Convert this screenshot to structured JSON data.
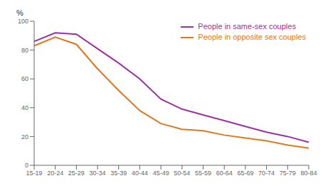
{
  "chart_data": {
    "type": "line",
    "ylabel": "%",
    "categories": [
      "15-19",
      "20-24",
      "25-29",
      "30-34",
      "35-39",
      "40-44",
      "45-49",
      "50-54",
      "55-59",
      "60-64",
      "65-69",
      "70-74",
      "75-79",
      "80-84"
    ],
    "series": [
      {
        "name": "People in same-sex couples",
        "color": "#9B30A0",
        "values": [
          86,
          92,
          91,
          81,
          71,
          60,
          46,
          39,
          35,
          31,
          27,
          23,
          20,
          16
        ]
      },
      {
        "name": "People in opposite sex couples",
        "color": "#E07820",
        "values": [
          83,
          89,
          84,
          67,
          52,
          38,
          29,
          25,
          24,
          21,
          19,
          17,
          14,
          12
        ]
      }
    ],
    "ylim": [
      0,
      100
    ],
    "yticks": [
      0,
      20,
      40,
      60,
      80,
      100
    ],
    "grid": false,
    "legend": "top-right"
  }
}
